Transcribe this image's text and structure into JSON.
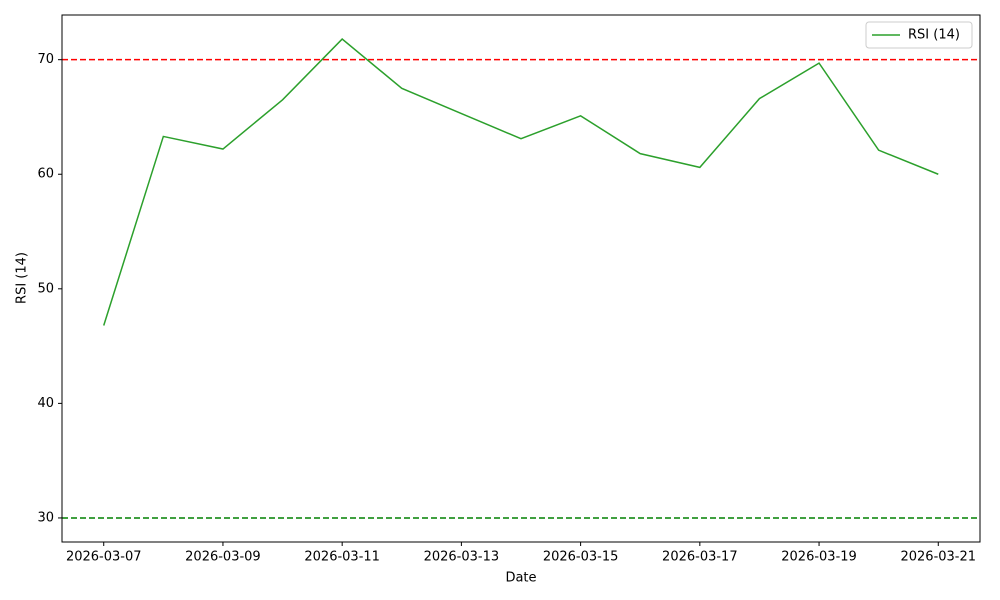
{
  "chart_data": {
    "type": "line",
    "x_label": "Date",
    "y_label": "RSI (14)",
    "x": [
      "2026-03-07",
      "2026-03-08",
      "2026-03-09",
      "2026-03-10",
      "2026-03-11",
      "2026-03-12",
      "2026-03-13",
      "2026-03-14",
      "2026-03-15",
      "2026-03-16",
      "2026-03-17",
      "2026-03-18",
      "2026-03-19",
      "2026-03-20",
      "2026-03-21"
    ],
    "series": [
      {
        "name": "RSI (14)",
        "color": "#2ca02c",
        "values": [
          46.8,
          63.3,
          62.2,
          66.5,
          71.8,
          67.5,
          65.3,
          63.1,
          65.1,
          61.8,
          60.6,
          66.6,
          69.7,
          62.1,
          60.0
        ]
      }
    ],
    "hlines": [
      {
        "value": 70,
        "color": "#ff0000"
      },
      {
        "value": 30,
        "color": "#008000"
      }
    ],
    "xlim": [
      "2026-03-07",
      "2026-03-21"
    ],
    "xticks": [
      "2026-03-07",
      "2026-03-09",
      "2026-03-11",
      "2026-03-13",
      "2026-03-15",
      "2026-03-17",
      "2026-03-19",
      "2026-03-21"
    ],
    "ylim": [
      27.9,
      73.9
    ],
    "yticks": [
      30,
      40,
      50,
      60,
      70
    ],
    "legend": "upper right",
    "grid": false
  }
}
